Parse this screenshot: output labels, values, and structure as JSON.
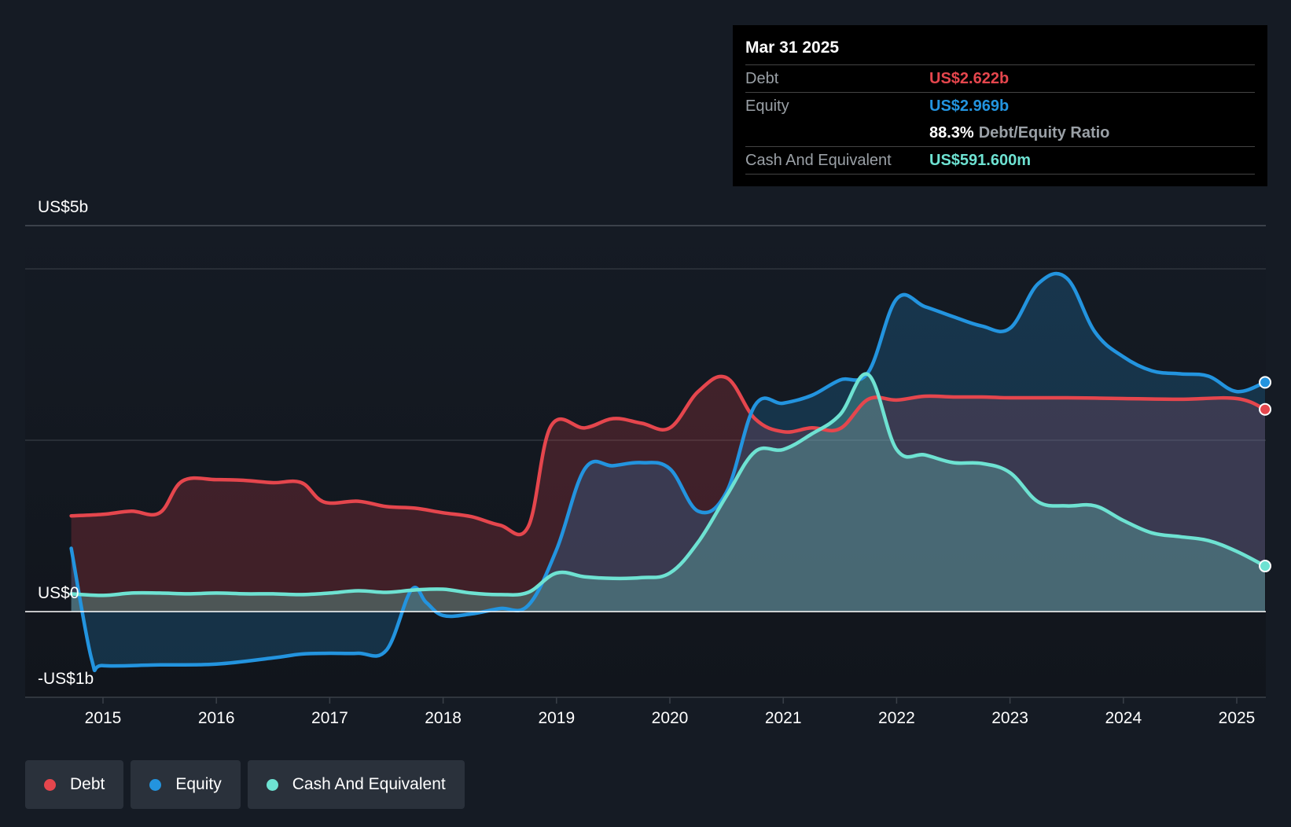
{
  "tooltip": {
    "date": "Mar 31 2025",
    "debt_label": "Debt",
    "debt_value": "US$2.622b",
    "equity_label": "Equity",
    "equity_value": "US$2.969b",
    "ratio_value": "88.3%",
    "ratio_label": "Debt/Equity Ratio",
    "cash_label": "Cash And Equivalent",
    "cash_value": "US$591.600m"
  },
  "legend": [
    {
      "label": "Debt",
      "color": "#e5464d"
    },
    {
      "label": "Equity",
      "color": "#2394df"
    },
    {
      "label": "Cash And Equivalent",
      "color": "#6ee2d2"
    }
  ],
  "chart_data": {
    "type": "area",
    "y_tick_labels": [
      "US$5b",
      "US$0",
      "-US$1b"
    ],
    "x_tick_labels": [
      "2015",
      "2016",
      "2017",
      "2018",
      "2019",
      "2020",
      "2021",
      "2022",
      "2023",
      "2024",
      "2025"
    ],
    "ylim": [
      -1.0,
      5.0
    ],
    "xlim": [
      2014.6,
      2025.25
    ],
    "colors": {
      "debt": "#e5464d",
      "equity": "#2394df",
      "cash": "#6ee2d2"
    },
    "series": [
      {
        "key": "debt",
        "name": "Debt",
        "points": [
          [
            2014.72,
            1.24
          ],
          [
            2015.0,
            1.26
          ],
          [
            2015.25,
            1.3
          ],
          [
            2015.5,
            1.28
          ],
          [
            2015.7,
            1.69
          ],
          [
            2016.0,
            1.71
          ],
          [
            2016.25,
            1.7
          ],
          [
            2016.5,
            1.67
          ],
          [
            2016.75,
            1.67
          ],
          [
            2016.95,
            1.42
          ],
          [
            2017.25,
            1.43
          ],
          [
            2017.5,
            1.36
          ],
          [
            2017.75,
            1.34
          ],
          [
            2018.0,
            1.28
          ],
          [
            2018.25,
            1.23
          ],
          [
            2018.5,
            1.12
          ],
          [
            2018.75,
            1.1
          ],
          [
            2018.95,
            2.4
          ],
          [
            2019.25,
            2.38
          ],
          [
            2019.5,
            2.5
          ],
          [
            2019.75,
            2.44
          ],
          [
            2020.0,
            2.38
          ],
          [
            2020.25,
            2.85
          ],
          [
            2020.5,
            3.03
          ],
          [
            2020.75,
            2.5
          ],
          [
            2021.0,
            2.33
          ],
          [
            2021.25,
            2.38
          ],
          [
            2021.5,
            2.37
          ],
          [
            2021.75,
            2.75
          ],
          [
            2022.0,
            2.74
          ],
          [
            2022.25,
            2.79
          ],
          [
            2022.5,
            2.78
          ],
          [
            2022.75,
            2.78
          ],
          [
            2023.0,
            2.77
          ],
          [
            2023.5,
            2.77
          ],
          [
            2024.0,
            2.76
          ],
          [
            2024.5,
            2.75
          ],
          [
            2025.0,
            2.76
          ],
          [
            2025.25,
            2.62
          ]
        ]
      },
      {
        "key": "equity",
        "name": "Equity",
        "points": [
          [
            2014.72,
            0.82
          ],
          [
            2014.9,
            -0.62
          ],
          [
            2015.0,
            -0.7
          ],
          [
            2015.5,
            -0.69
          ],
          [
            2016.0,
            -0.68
          ],
          [
            2016.5,
            -0.6
          ],
          [
            2016.75,
            -0.55
          ],
          [
            2017.0,
            -0.54
          ],
          [
            2017.25,
            -0.54
          ],
          [
            2017.5,
            -0.5
          ],
          [
            2017.72,
            0.28
          ],
          [
            2017.85,
            0.12
          ],
          [
            2018.0,
            -0.05
          ],
          [
            2018.25,
            -0.03
          ],
          [
            2018.5,
            0.04
          ],
          [
            2018.75,
            0.08
          ],
          [
            2019.0,
            0.8
          ],
          [
            2019.25,
            1.85
          ],
          [
            2019.5,
            1.89
          ],
          [
            2019.75,
            1.93
          ],
          [
            2020.0,
            1.85
          ],
          [
            2020.25,
            1.3
          ],
          [
            2020.5,
            1.55
          ],
          [
            2020.75,
            2.67
          ],
          [
            2021.0,
            2.7
          ],
          [
            2021.25,
            2.8
          ],
          [
            2021.5,
            3.0
          ],
          [
            2021.75,
            3.1
          ],
          [
            2022.0,
            4.05
          ],
          [
            2022.25,
            3.95
          ],
          [
            2022.5,
            3.82
          ],
          [
            2022.75,
            3.7
          ],
          [
            2023.0,
            3.67
          ],
          [
            2023.25,
            4.25
          ],
          [
            2023.5,
            4.32
          ],
          [
            2023.75,
            3.62
          ],
          [
            2024.0,
            3.3
          ],
          [
            2024.25,
            3.12
          ],
          [
            2024.5,
            3.08
          ],
          [
            2024.75,
            3.05
          ],
          [
            2025.0,
            2.85
          ],
          [
            2025.25,
            2.97
          ]
        ]
      },
      {
        "key": "cash",
        "name": "Cash And Equivalent",
        "points": [
          [
            2014.72,
            0.23
          ],
          [
            2015.0,
            0.21
          ],
          [
            2015.25,
            0.24
          ],
          [
            2015.5,
            0.24
          ],
          [
            2015.75,
            0.23
          ],
          [
            2016.0,
            0.24
          ],
          [
            2016.25,
            0.23
          ],
          [
            2016.5,
            0.23
          ],
          [
            2016.75,
            0.22
          ],
          [
            2017.0,
            0.24
          ],
          [
            2017.25,
            0.27
          ],
          [
            2017.5,
            0.25
          ],
          [
            2017.75,
            0.28
          ],
          [
            2018.0,
            0.29
          ],
          [
            2018.25,
            0.24
          ],
          [
            2018.5,
            0.22
          ],
          [
            2018.75,
            0.25
          ],
          [
            2019.0,
            0.5
          ],
          [
            2019.25,
            0.45
          ],
          [
            2019.5,
            0.43
          ],
          [
            2019.75,
            0.44
          ],
          [
            2020.0,
            0.5
          ],
          [
            2020.25,
            0.9
          ],
          [
            2020.5,
            1.5
          ],
          [
            2020.75,
            2.07
          ],
          [
            2021.0,
            2.1
          ],
          [
            2021.25,
            2.3
          ],
          [
            2021.5,
            2.55
          ],
          [
            2021.75,
            3.07
          ],
          [
            2022.0,
            2.1
          ],
          [
            2022.25,
            2.03
          ],
          [
            2022.5,
            1.93
          ],
          [
            2022.75,
            1.92
          ],
          [
            2023.0,
            1.8
          ],
          [
            2023.25,
            1.42
          ],
          [
            2023.5,
            1.37
          ],
          [
            2023.75,
            1.37
          ],
          [
            2024.0,
            1.18
          ],
          [
            2024.25,
            1.02
          ],
          [
            2024.5,
            0.97
          ],
          [
            2024.75,
            0.92
          ],
          [
            2025.0,
            0.78
          ],
          [
            2025.25,
            0.59
          ]
        ]
      }
    ]
  }
}
